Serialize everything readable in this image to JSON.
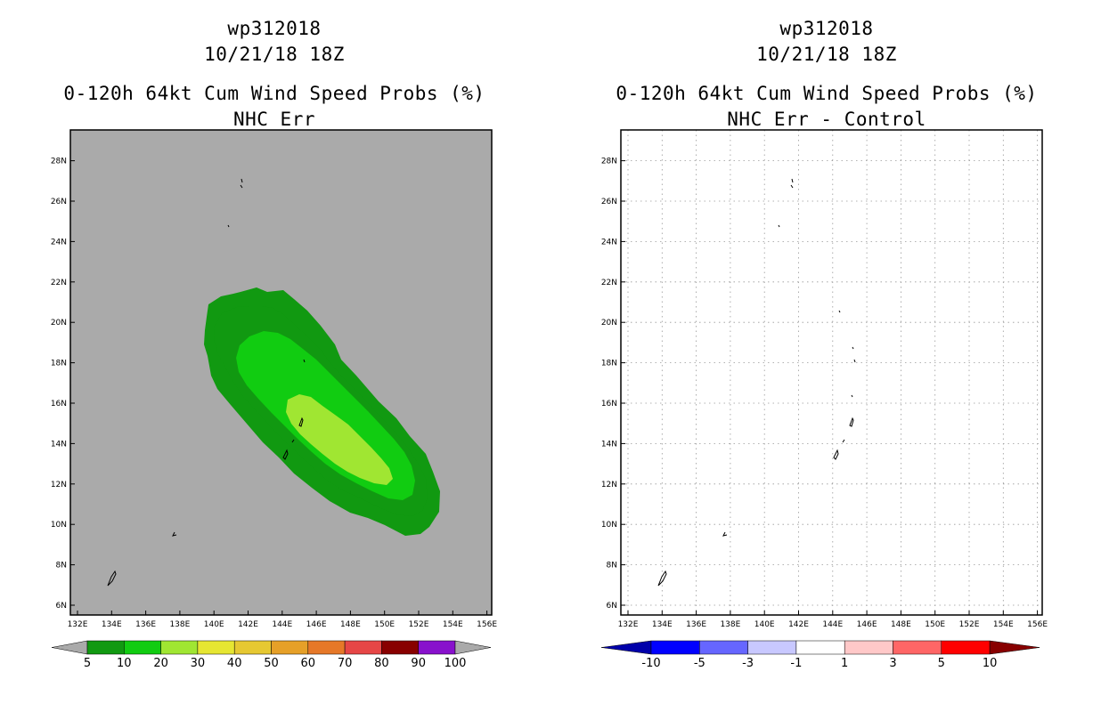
{
  "left_panel": {
    "title_line1": "wp312018",
    "title_line2": "10/21/18 18Z",
    "title_line3": "0-120h 64kt Cum Wind Speed Probs (%)",
    "title_line4": "NHC Err",
    "background_color": "#aaaaaa",
    "probability_contours": [
      {
        "threshold": "5",
        "color": "#119911"
      },
      {
        "threshold": "10",
        "color": "#11cc11"
      },
      {
        "threshold": "20",
        "color": "#a0e632"
      }
    ],
    "colorbar": {
      "colors": [
        "#119911",
        "#11cc11",
        "#a0e632",
        "#e6e632",
        "#e6c832",
        "#e6a028",
        "#e67828",
        "#e64646",
        "#880000",
        "#8811cc"
      ],
      "labels": [
        "5",
        "10",
        "20",
        "30",
        "40",
        "50",
        "60",
        "70",
        "80",
        "90",
        "100"
      ],
      "end_color": "#aaaaaa"
    }
  },
  "right_panel": {
    "title_line1": "wp312018",
    "title_line2": "10/21/18 18Z",
    "title_line3": "0-120h 64kt Cum Wind Speed Probs (%)",
    "title_line4": "NHC Err - Control",
    "background_color": "#ffffff",
    "colorbar": {
      "low_end_color": "#0000aa",
      "high_end_color": "#880000",
      "colors": [
        "#0000ff",
        "#6666ff",
        "#c8c8ff",
        "#ffffff",
        "#ffc8c8",
        "#ff6666",
        "#ff0000"
      ],
      "labels": [
        "-10",
        "-5",
        "-3",
        "-1",
        "1",
        "3",
        "5",
        "10"
      ]
    }
  },
  "map": {
    "lon_labels": [
      "132E",
      "134E",
      "136E",
      "138E",
      "140E",
      "142E",
      "144E",
      "146E",
      "148E",
      "150E",
      "152E",
      "154E",
      "156E"
    ],
    "lat_labels": [
      "6N",
      "8N",
      "10N",
      "12N",
      "14N",
      "16N",
      "18N",
      "20N",
      "22N",
      "24N",
      "26N",
      "28N"
    ],
    "lon_range": [
      132,
      157
    ],
    "lat_range": [
      5.5,
      29.5
    ]
  }
}
